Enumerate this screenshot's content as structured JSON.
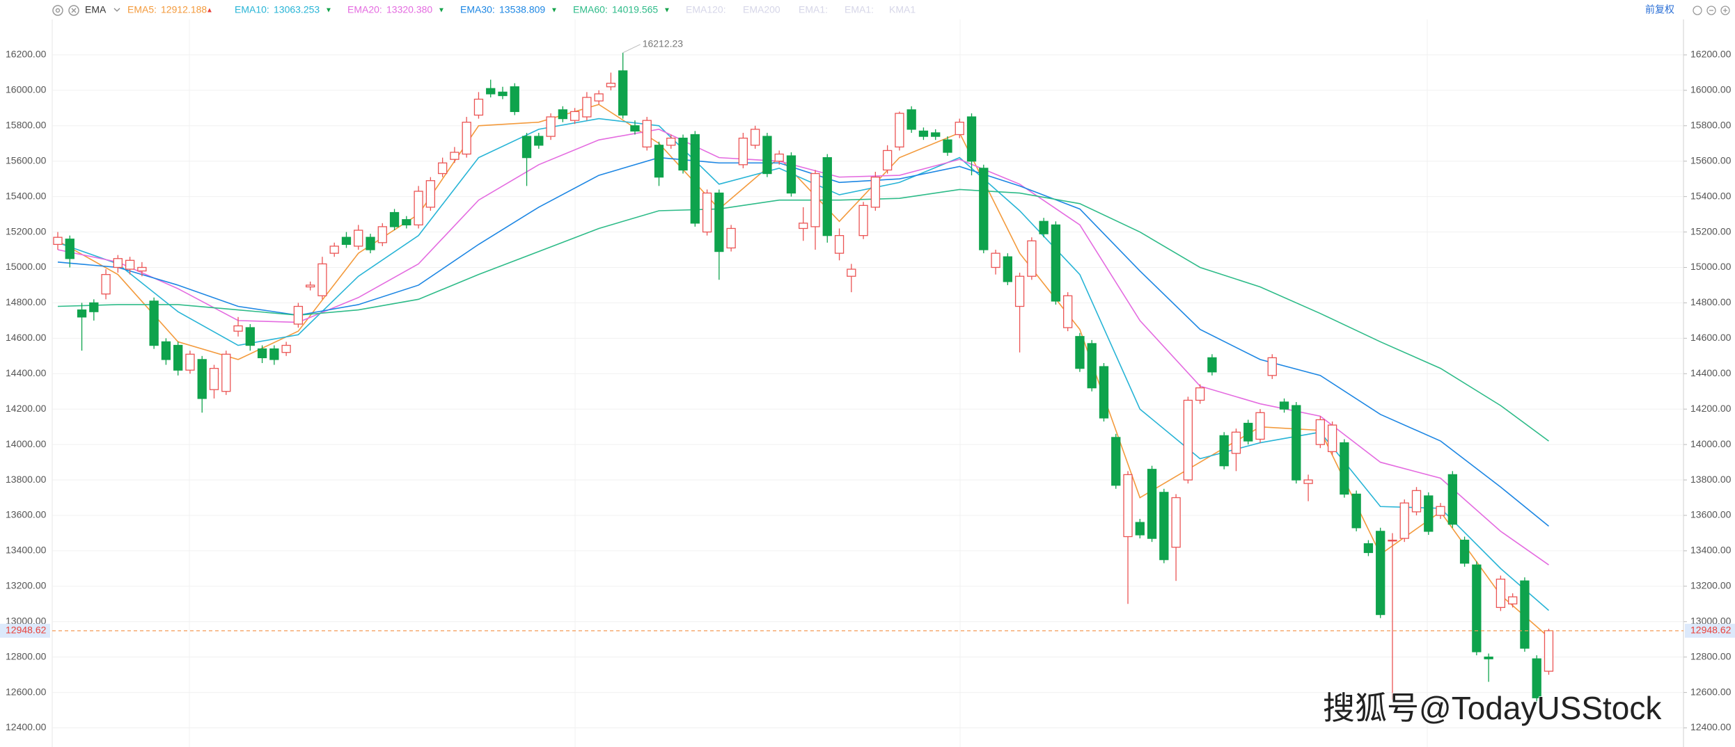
{
  "chart_data": {
    "type": "candlestick",
    "indicator": "EMA",
    "adjust": "前复权",
    "watermark": "搜狐号@TodayUSStock",
    "inactive_legend": [
      "EMA120:",
      "EMA200",
      "EMA1:",
      "EMA1:",
      "KMA1"
    ],
    "ylim": [
      12300,
      16400
    ],
    "yticks": [
      {
        "value": 12400,
        "label": "12400.00"
      },
      {
        "value": 12600,
        "label": "12600.00"
      },
      {
        "value": 12800,
        "label": "12800.00"
      },
      {
        "value": 13000,
        "label": "13000.00"
      },
      {
        "value": 13200,
        "label": "13200.00"
      },
      {
        "value": 13400,
        "label": "13400.00"
      },
      {
        "value": 13600,
        "label": "13600.00"
      },
      {
        "value": 13800,
        "label": "13800.00"
      },
      {
        "value": 14000,
        "label": "14000.00"
      },
      {
        "value": 14200,
        "label": "14200.00"
      },
      {
        "value": 14400,
        "label": "14400.00"
      },
      {
        "value": 14600,
        "label": "14600.00"
      },
      {
        "value": 14800,
        "label": "14800.00"
      },
      {
        "value": 15000,
        "label": "15000.00"
      },
      {
        "value": 15200,
        "label": "15200.00"
      },
      {
        "value": 15400,
        "label": "15400.00"
      },
      {
        "value": 15600,
        "label": "15600.00"
      },
      {
        "value": 15800,
        "label": "15800.00"
      },
      {
        "value": 16000,
        "label": "16000.00"
      },
      {
        "value": 16200,
        "label": "16200.00"
      }
    ],
    "grid": true,
    "up_color": "#eb5454",
    "down_color": "#0ea34c",
    "last_price_color": "#f39a55",
    "open": [
      15130,
      15160,
      14760,
      14800,
      14850,
      15000,
      14990,
      14980,
      14810,
      14580,
      14560,
      14420,
      14480,
      14310,
      14300,
      14640,
      14660,
      14540,
      14540,
      14520,
      14680,
      14890,
      14840,
      15080,
      15170,
      15120,
      15170,
      15140,
      15310,
      15270,
      15240,
      15340,
      15530,
      15610,
      15640,
      15860,
      16010,
      15990,
      16020,
      15740,
      15740,
      15740,
      15890,
      15830,
      15850,
      15940,
      16020,
      16110,
      15800,
      15680,
      15690,
      15690,
      15730,
      15750,
      15200,
      15420,
      15110,
      15580,
      15690,
      15740,
      15600,
      15630,
      15220,
      15230,
      15620,
      15080,
      14950,
      15180,
      15340,
      15550,
      15680,
      15890,
      15770,
      15760,
      15720,
      15750,
      15850,
      15560,
      15000,
      15060,
      14780,
      14950,
      15260,
      15240,
      14660,
      14610,
      14570,
      14440,
      14040,
      13480,
      13560,
      13860,
      13730,
      13420,
      13800,
      14250,
      14490,
      14050,
      13950,
      14120,
      14030,
      14390,
      14240,
      14220,
      13780,
      14000,
      13960,
      14010,
      13720,
      13440,
      13510,
      13460,
      13470,
      13620,
      13710,
      13600,
      13830,
      13460,
      13320,
      12800,
      13080,
      13100,
      13230,
      12790,
      12720
    ],
    "high": [
      15200,
      15180,
      14800,
      14820,
      14990,
      15070,
      15060,
      15030,
      14830,
      14600,
      14580,
      14530,
      14500,
      14450,
      14530,
      14720,
      14680,
      14560,
      14560,
      14580,
      14800,
      14920,
      15060,
      15140,
      15200,
      15240,
      15190,
      15250,
      15330,
      15290,
      15460,
      15510,
      15620,
      15680,
      15850,
      15990,
      16060,
      16020,
      16040,
      15760,
      15760,
      15870,
      15910,
      15900,
      15990,
      16000,
      16100,
      16212.23,
      15830,
      15850,
      15710,
      15750,
      15750,
      15770,
      15440,
      15440,
      15240,
      15760,
      15800,
      15760,
      15660,
      15650,
      15340,
      15550,
      15640,
      15220,
      15020,
      15370,
      15540,
      15690,
      15880,
      15910,
      15790,
      15780,
      15740,
      15840,
      15870,
      15580,
      15100,
      15080,
      14970,
      15170,
      15280,
      15260,
      14860,
      14630,
      14590,
      14460,
      14060,
      13850,
      13580,
      13880,
      13750,
      13720,
      14270,
      14340,
      14510,
      14070,
      14090,
      14140,
      14200,
      14510,
      14260,
      14240,
      13830,
      14160,
      14130,
      14030,
      13740,
      13460,
      13530,
      13500,
      13690,
      13760,
      13730,
      13670,
      13850,
      13480,
      13340,
      12820,
      13260,
      13160,
      13250,
      12810,
      12960
    ],
    "low": [
      15100,
      15000,
      14530,
      14700,
      14820,
      14970,
      14960,
      14950,
      14540,
      14450,
      14390,
      14400,
      14180,
      14260,
      14280,
      14610,
      14530,
      14460,
      14450,
      14500,
      14660,
      14870,
      14820,
      15060,
      15110,
      15100,
      15080,
      15120,
      15210,
      15220,
      15220,
      15320,
      15510,
      15590,
      15620,
      15840,
      15960,
      15950,
      15860,
      15460,
      15670,
      15720,
      15820,
      15810,
      15830,
      15920,
      16000,
      15840,
      15750,
      15660,
      15460,
      15670,
      15530,
      15230,
      15180,
      14930,
      15090,
      15560,
      15670,
      15510,
      15580,
      15400,
      15150,
      15100,
      15140,
      15040,
      14860,
      15160,
      15320,
      15530,
      15660,
      15760,
      15720,
      15720,
      15630,
      15730,
      15520,
      15080,
      14960,
      14900,
      14520,
      14930,
      15170,
      14790,
      14640,
      14410,
      14300,
      14130,
      13750,
      13100,
      13470,
      13450,
      13330,
      13230,
      13780,
      14230,
      14390,
      13860,
      13850,
      14000,
      14010,
      14370,
      14180,
      13780,
      13680,
      13980,
      13940,
      13700,
      13510,
      13370,
      13020,
      12560,
      13450,
      13600,
      13490,
      13580,
      13530,
      13310,
      12810,
      12660,
      13060,
      13080,
      12830,
      12550,
      12700
    ],
    "close": [
      15170,
      15050,
      14720,
      14750,
      14960,
      15050,
      15040,
      15000,
      14560,
      14480,
      14420,
      14510,
      14260,
      14430,
      14510,
      14670,
      14560,
      14490,
      14480,
      14560,
      14780,
      14900,
      15020,
      15120,
      15130,
      15210,
      15100,
      15230,
      15230,
      15240,
      15430,
      15490,
      15590,
      15650,
      15820,
      15950,
      15980,
      15970,
      15880,
      15620,
      15690,
      15850,
      15840,
      15880,
      15960,
      15980,
      16040,
      15860,
      15770,
      15830,
      15510,
      15730,
      15550,
      15250,
      15420,
      15090,
      15220,
      15730,
      15780,
      15530,
      15640,
      15420,
      15250,
      15530,
      15180,
      15180,
      14990,
      15350,
      15510,
      15660,
      15870,
      15780,
      15740,
      15740,
      15650,
      15820,
      15600,
      15100,
      15080,
      14920,
      14950,
      15150,
      15190,
      14810,
      14840,
      14430,
      14320,
      14150,
      13770,
      13830,
      13490,
      13470,
      13350,
      13700,
      14250,
      14320,
      14410,
      13880,
      14070,
      14020,
      14180,
      14490,
      14200,
      13800,
      13800,
      14140,
      14110,
      13720,
      13530,
      13390,
      13040,
      13460,
      13670,
      13740,
      13510,
      13650,
      13550,
      13330,
      12830,
      12790,
      13240,
      13140,
      12850,
      12570,
      12948.62
    ],
    "series": [
      {
        "name": "EMA5:",
        "color": "#f39a3c",
        "legend_value": "12912.188",
        "trend": "▲",
        "trend_color": "#e8413b",
        "x": [
          0,
          5,
          10,
          15,
          20,
          25,
          30,
          35,
          40,
          45,
          50,
          55,
          60,
          65,
          70,
          75,
          80,
          85,
          90,
          95,
          100,
          105,
          110,
          115,
          120,
          124
        ],
        "values": [
          15150,
          14960,
          14580,
          14480,
          14640,
          15080,
          15300,
          15800,
          15820,
          15920,
          15700,
          15330,
          15620,
          15260,
          15620,
          15760,
          15080,
          14650,
          13700,
          13900,
          14100,
          14080,
          13380,
          13620,
          13150,
          12912.188
        ]
      },
      {
        "name": "EMA10:",
        "color": "#27b4d6",
        "legend_value": "13063.253",
        "trend": "▼",
        "trend_color": "#14a24a",
        "x": [
          0,
          5,
          10,
          15,
          20,
          25,
          30,
          35,
          40,
          45,
          50,
          55,
          60,
          65,
          70,
          75,
          80,
          85,
          90,
          95,
          100,
          105,
          110,
          115,
          120,
          124
        ],
        "values": [
          15140,
          15020,
          14750,
          14560,
          14620,
          14950,
          15180,
          15620,
          15780,
          15840,
          15800,
          15470,
          15560,
          15410,
          15480,
          15620,
          15320,
          14960,
          14200,
          13920,
          14010,
          14070,
          13650,
          13640,
          13300,
          13063.253
        ]
      },
      {
        "name": "EMA20:",
        "color": "#e46be0",
        "legend_value": "13320.380",
        "trend": "▼",
        "trend_color": "#14a24a",
        "x": [
          0,
          5,
          10,
          15,
          20,
          25,
          30,
          35,
          40,
          45,
          50,
          55,
          60,
          65,
          70,
          75,
          80,
          85,
          90,
          95,
          100,
          105,
          110,
          115,
          120,
          124
        ],
        "values": [
          15100,
          15030,
          14880,
          14700,
          14690,
          14830,
          15020,
          15380,
          15580,
          15720,
          15780,
          15620,
          15600,
          15510,
          15520,
          15610,
          15470,
          15240,
          14700,
          14330,
          14230,
          14160,
          13900,
          13810,
          13510,
          13320.38
        ]
      },
      {
        "name": "EMA30:",
        "color": "#1c86e3",
        "legend_value": "13538.809",
        "trend": "▼",
        "trend_color": "#14a24a",
        "x": [
          0,
          5,
          10,
          15,
          20,
          25,
          30,
          35,
          40,
          45,
          50,
          55,
          60,
          65,
          70,
          75,
          80,
          85,
          90,
          95,
          100,
          105,
          110,
          115,
          120,
          124
        ],
        "values": [
          15030,
          15000,
          14900,
          14780,
          14730,
          14790,
          14900,
          15130,
          15340,
          15520,
          15620,
          15590,
          15590,
          15480,
          15500,
          15570,
          15460,
          15330,
          14980,
          14650,
          14480,
          14390,
          14170,
          14020,
          13760,
          13538.809
        ]
      },
      {
        "name": "EMA60:",
        "color": "#2dbb88",
        "legend_value": "14019.565",
        "trend": "▼",
        "trend_color": "#14a24a",
        "x": [
          0,
          5,
          10,
          15,
          20,
          25,
          30,
          35,
          40,
          45,
          50,
          55,
          60,
          65,
          70,
          75,
          80,
          85,
          90,
          95,
          100,
          105,
          110,
          115,
          120,
          124
        ],
        "values": [
          14780,
          14790,
          14790,
          14760,
          14730,
          14760,
          14820,
          14960,
          15090,
          15220,
          15320,
          15330,
          15380,
          15380,
          15390,
          15440,
          15420,
          15360,
          15200,
          15000,
          14890,
          14740,
          14580,
          14430,
          14220,
          14019.565
        ]
      }
    ]
  }
}
